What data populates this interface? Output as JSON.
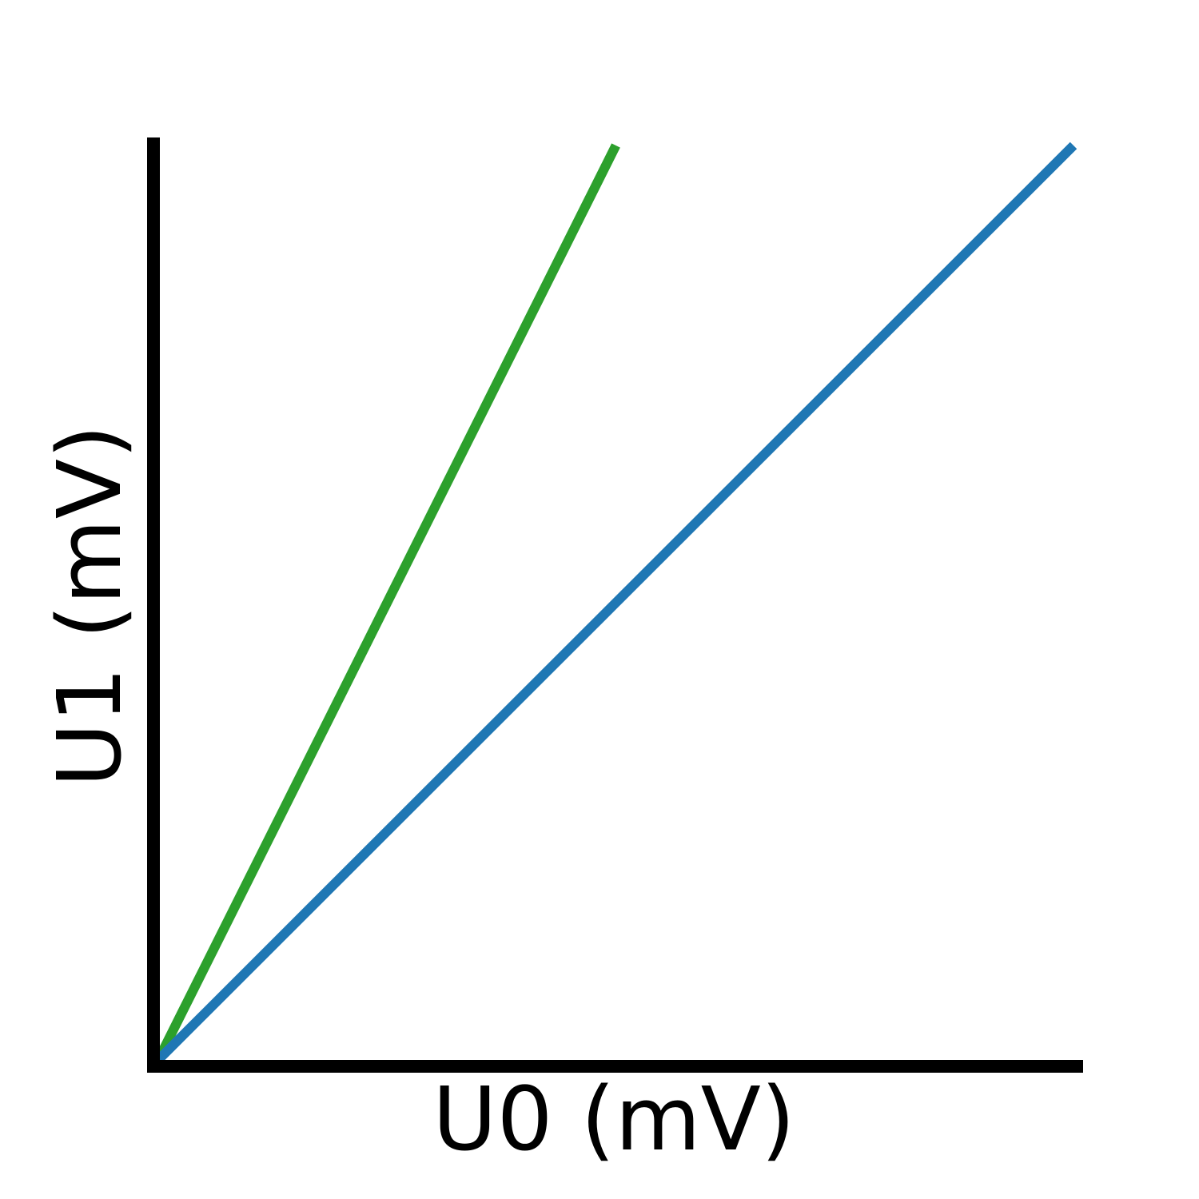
{
  "chart_data": {
    "type": "line",
    "title": "",
    "xlabel": "U0 (mV)",
    "ylabel": "U1 (mV)",
    "xlim": [
      0,
      1
    ],
    "ylim": [
      0,
      1
    ],
    "grid": false,
    "legend": "none",
    "series": [
      {
        "color": "#2ca02c",
        "x": [
          0,
          0.5
        ],
        "y": [
          0,
          1
        ]
      },
      {
        "color": "#1f77b4",
        "x": [
          0,
          1
        ],
        "y": [
          0,
          1
        ]
      }
    ]
  }
}
